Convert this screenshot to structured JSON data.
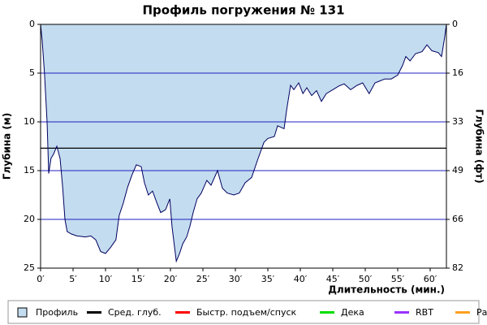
{
  "chart_data": {
    "type": "area",
    "title": "Профиль погружения № 131",
    "xlabel": "Длительность (мин.)",
    "ylabel": "Глубина (м)",
    "y2label": "Глубина (фт)",
    "xlim": [
      0,
      62.5
    ],
    "ylim": [
      0,
      25
    ],
    "y2lim": [
      0,
      82
    ],
    "xticks": [
      {
        "value": 0,
        "label": "0′"
      },
      {
        "value": 5,
        "label": "5′"
      },
      {
        "value": 10,
        "label": "10′"
      },
      {
        "value": 15,
        "label": "15′"
      },
      {
        "value": 20,
        "label": "20′"
      },
      {
        "value": 25,
        "label": "25′"
      },
      {
        "value": 30,
        "label": "30′"
      },
      {
        "value": 35,
        "label": "35′"
      },
      {
        "value": 40,
        "label": "40′"
      },
      {
        "value": 45,
        "label": "45′"
      },
      {
        "value": 50,
        "label": "50′"
      },
      {
        "value": 55,
        "label": "55′"
      },
      {
        "value": 60,
        "label": "60′"
      }
    ],
    "yticks": [
      0,
      5,
      10,
      15,
      20,
      25
    ],
    "y2ticks": [
      0,
      {
        "value": 16.4,
        "label": "16"
      },
      {
        "value": 32.8,
        "label": "33"
      },
      {
        "value": 49.2,
        "label": "49"
      },
      {
        "value": 65.6,
        "label": "66"
      },
      82
    ],
    "grid_color": "#2020c0",
    "profile": {
      "name": "Профиль",
      "color": "#c3dcef",
      "line_color": "#000060",
      "x": [
        0,
        0.25,
        0.6,
        1,
        1.25,
        1.6,
        2,
        2.5,
        3,
        3.4,
        3.75,
        4.1,
        4.75,
        5.6,
        6.9,
        7.75,
        8.5,
        9.25,
        10,
        10.75,
        11.6,
        12.1,
        12.75,
        13.4,
        14.1,
        14.75,
        15.5,
        16,
        16.6,
        17.25,
        17.9,
        18.5,
        19.25,
        19.9,
        20.25,
        20.9,
        21.4,
        21.9,
        22.5,
        23,
        23.5,
        24.1,
        24.75,
        25.6,
        26.25,
        27.25,
        28,
        28.75,
        29.75,
        30.6,
        31.5,
        32.5,
        33.5,
        34.4,
        35,
        36,
        36.5,
        37.5,
        37.9,
        38.5,
        39,
        39.75,
        40.4,
        41,
        41.75,
        42.5,
        43.25,
        44,
        45,
        46,
        46.75,
        47.75,
        48.75,
        49.6,
        50.6,
        51.5,
        52.25,
        53,
        54,
        55,
        55.75,
        56.25,
        56.9,
        57.75,
        58.75,
        59.5,
        60.25,
        61.25,
        61.75,
        62.25,
        62.5
      ],
      "values": [
        0,
        1.7,
        5,
        10,
        15.3,
        13.75,
        13.3,
        12.5,
        13.75,
        16.7,
        20,
        21.25,
        21.5,
        21.7,
        21.8,
        21.7,
        22.1,
        23.3,
        23.5,
        22.9,
        22.1,
        19.6,
        18.3,
        16.7,
        15.4,
        14.4,
        14.6,
        16.25,
        17.5,
        17.1,
        18.3,
        19.3,
        19,
        17.9,
        20.8,
        24.3,
        23.5,
        22.5,
        21.8,
        20.7,
        19.3,
        17.9,
        17.3,
        16,
        16.5,
        15,
        16.8,
        17.3,
        17.5,
        17.3,
        16.25,
        15.7,
        13.75,
        12.1,
        11.7,
        11.5,
        10.4,
        10.7,
        8.75,
        6.25,
        6.7,
        6,
        7.1,
        6.5,
        7.3,
        6.8,
        7.9,
        7.1,
        6.7,
        6.3,
        6.1,
        6.7,
        6.25,
        6,
        7.1,
        6,
        5.8,
        5.6,
        5.6,
        5.2,
        4.2,
        3.3,
        3.75,
        3,
        2.8,
        2.1,
        2.7,
        2.9,
        3.3,
        1.25,
        0
      ]
    },
    "avg_depth": 12.7,
    "legend": [
      {
        "name": "Профиль",
        "color": "#c3dcef"
      },
      {
        "name": "Сред. глуб.",
        "color": "#000000"
      },
      {
        "name": "Быстр. подъем/спуск",
        "color": "#ff0000"
      },
      {
        "name": "Дека",
        "color": "#00dd00"
      },
      {
        "name": "RBT",
        "color": "#9933ff"
      },
      {
        "name": "Раб.",
        "color": "#ffa020"
      }
    ]
  }
}
